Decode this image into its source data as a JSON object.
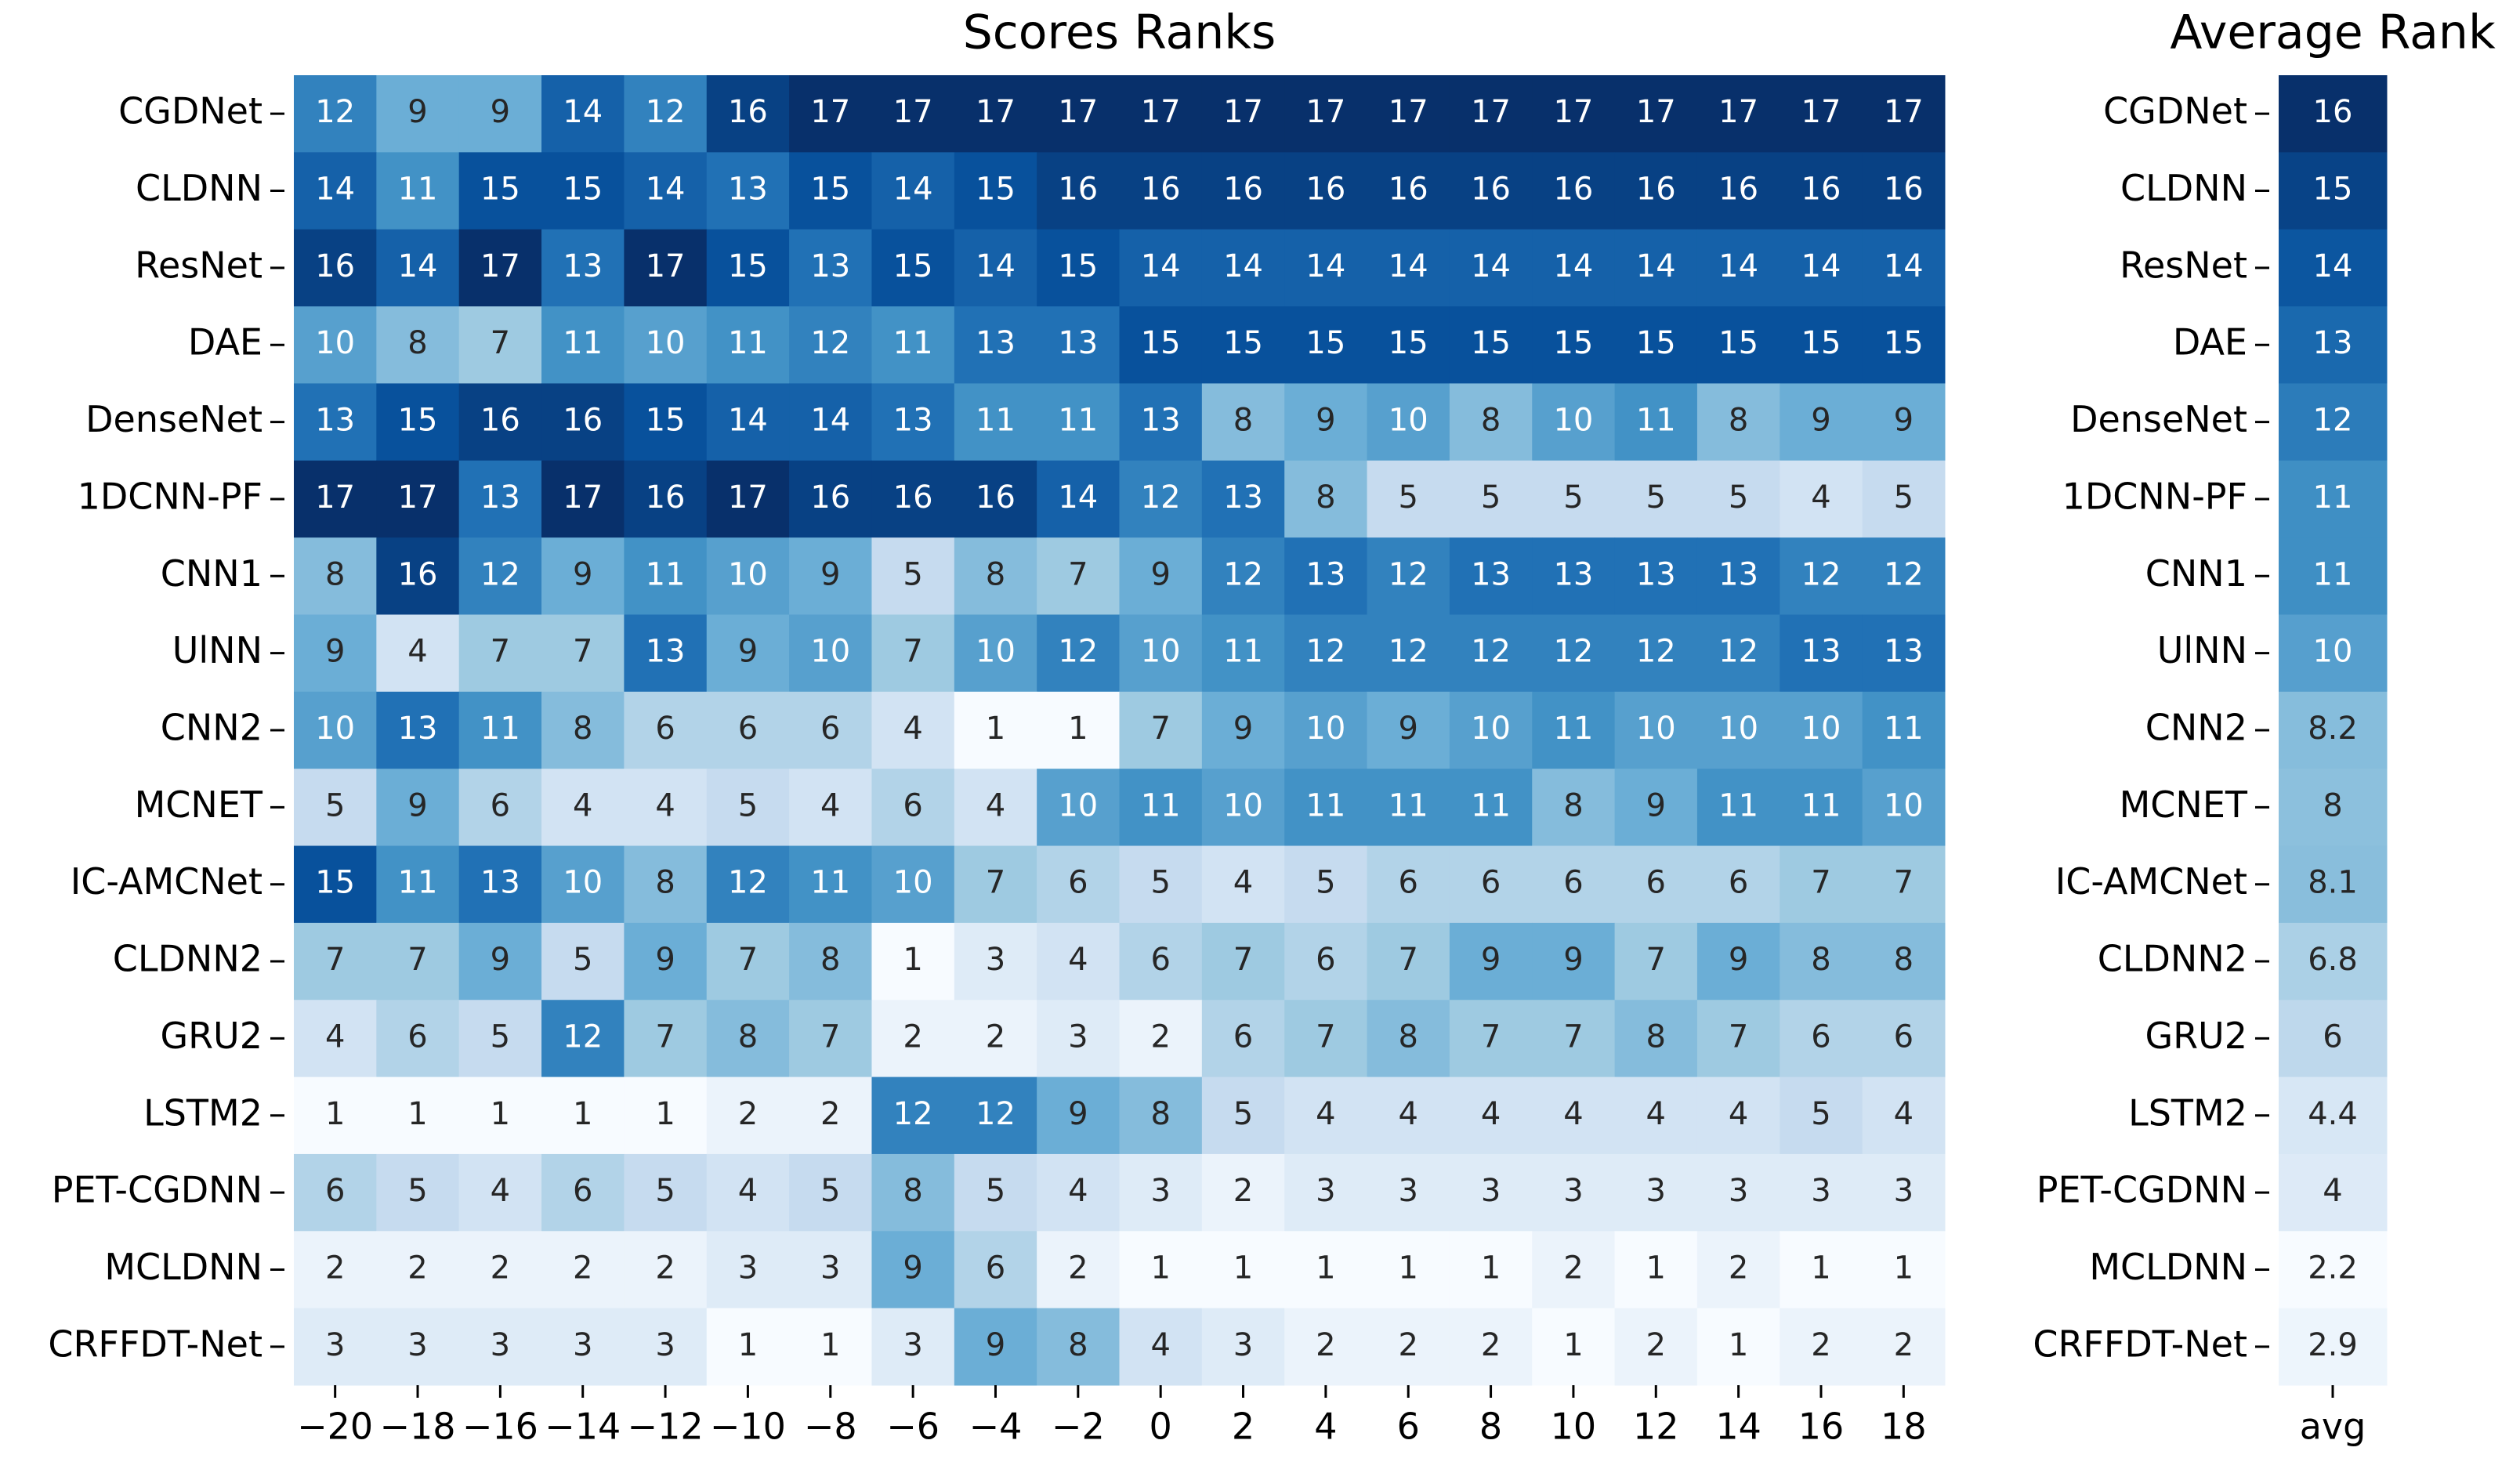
{
  "chart_data": [
    {
      "type": "heatmap",
      "title": "Scores Ranks",
      "rows": [
        "CGDNet",
        "CLDNN",
        "ResNet",
        "DAE",
        "DenseNet",
        "1DCNN-PF",
        "CNN1",
        "UlNN",
        "CNN2",
        "MCNET",
        "IC-AMCNet",
        "CLDNN2",
        "GRU2",
        "LSTM2",
        "PET-CGDNN",
        "MCLDNN",
        "CRFFDT-Net"
      ],
      "xticks": [
        {
          "value": -20,
          "label": "−20"
        },
        {
          "value": -18,
          "label": "−18"
        },
        {
          "value": -16,
          "label": "−16"
        },
        {
          "value": -14,
          "label": "−14"
        },
        {
          "value": -12,
          "label": "−12"
        },
        {
          "value": -10,
          "label": "−10"
        },
        {
          "value": -8,
          "label": "−8"
        },
        {
          "value": -6,
          "label": "−6"
        },
        {
          "value": -4,
          "label": "−4"
        },
        {
          "value": -2,
          "label": "−2"
        },
        0,
        2,
        4,
        6,
        8,
        10,
        12,
        14,
        16,
        18
      ],
      "values": [
        [
          12,
          9,
          9,
          14,
          12,
          16,
          17,
          17,
          17,
          17,
          17,
          17,
          17,
          17,
          17,
          17,
          17,
          17,
          17,
          17
        ],
        [
          14,
          11,
          15,
          15,
          14,
          13,
          15,
          14,
          15,
          16,
          16,
          16,
          16,
          16,
          16,
          16,
          16,
          16,
          16,
          16
        ],
        [
          16,
          14,
          17,
          13,
          17,
          15,
          13,
          15,
          14,
          15,
          14,
          14,
          14,
          14,
          14,
          14,
          14,
          14,
          14,
          14
        ],
        [
          10,
          8,
          7,
          11,
          10,
          11,
          12,
          11,
          13,
          13,
          15,
          15,
          15,
          15,
          15,
          15,
          15,
          15,
          15,
          15
        ],
        [
          13,
          15,
          16,
          16,
          15,
          14,
          14,
          13,
          11,
          11,
          13,
          8,
          9,
          10,
          8,
          10,
          11,
          8,
          9,
          9
        ],
        [
          17,
          17,
          13,
          17,
          16,
          17,
          16,
          16,
          16,
          14,
          12,
          13,
          8,
          5,
          5,
          5,
          5,
          5,
          4,
          5
        ],
        [
          8,
          16,
          12,
          9,
          11,
          10,
          9,
          5,
          8,
          7,
          9,
          12,
          13,
          12,
          13,
          13,
          13,
          13,
          12,
          12
        ],
        [
          9,
          4,
          7,
          7,
          13,
          9,
          10,
          7,
          10,
          12,
          10,
          11,
          12,
          12,
          12,
          12,
          12,
          12,
          13,
          13
        ],
        [
          10,
          13,
          11,
          8,
          6,
          6,
          6,
          4,
          1,
          1,
          7,
          9,
          10,
          9,
          10,
          11,
          10,
          10,
          10,
          11
        ],
        [
          5,
          9,
          6,
          4,
          4,
          5,
          4,
          6,
          4,
          10,
          11,
          10,
          11,
          11,
          11,
          8,
          9,
          11,
          11,
          10
        ],
        [
          15,
          11,
          13,
          10,
          8,
          12,
          11,
          10,
          7,
          6,
          5,
          4,
          5,
          6,
          6,
          6,
          6,
          6,
          7,
          7
        ],
        [
          7,
          7,
          9,
          5,
          9,
          7,
          8,
          1,
          3,
          4,
          6,
          7,
          6,
          7,
          9,
          9,
          7,
          9,
          8,
          8
        ],
        [
          4,
          6,
          5,
          12,
          7,
          8,
          7,
          2,
          2,
          3,
          2,
          6,
          7,
          8,
          7,
          7,
          8,
          7,
          6,
          6
        ],
        [
          1,
          1,
          1,
          1,
          1,
          2,
          2,
          12,
          12,
          9,
          8,
          5,
          4,
          4,
          4,
          4,
          4,
          4,
          5,
          4
        ],
        [
          6,
          5,
          4,
          6,
          5,
          4,
          5,
          8,
          5,
          4,
          3,
          2,
          3,
          3,
          3,
          3,
          3,
          3,
          3,
          3
        ],
        [
          2,
          2,
          2,
          2,
          2,
          3,
          3,
          9,
          6,
          2,
          1,
          1,
          1,
          1,
          1,
          2,
          1,
          2,
          1,
          1
        ],
        [
          3,
          3,
          3,
          3,
          3,
          1,
          1,
          3,
          9,
          8,
          4,
          3,
          2,
          2,
          2,
          1,
          2,
          1,
          2,
          2
        ]
      ],
      "vlim": [
        1,
        17
      ],
      "colorscale": [
        "#f7fbff",
        "#deebf7",
        "#c6dbef",
        "#9ecae1",
        "#6baed6",
        "#4292c6",
        "#2171b5",
        "#08519c",
        "#08306b"
      ]
    },
    {
      "type": "heatmap",
      "title": "Average Rank",
      "rows": [
        "CGDNet",
        "CLDNN",
        "ResNet",
        "DAE",
        "DenseNet",
        "1DCNN-PF",
        "CNN1",
        "UlNN",
        "CNN2",
        "MCNET",
        "IC-AMCNet",
        "CLDNN2",
        "GRU2",
        "LSTM2",
        "PET-CGDNN",
        "MCLDNN",
        "CRFFDT-Net"
      ],
      "xticks": [
        "avg"
      ],
      "values": [
        [
          16
        ],
        [
          15
        ],
        [
          14
        ],
        [
          13
        ],
        [
          12
        ],
        [
          11
        ],
        [
          11
        ],
        [
          10
        ],
        [
          8.2
        ],
        [
          8
        ],
        [
          8.1
        ],
        [
          6.8
        ],
        [
          6
        ],
        [
          4.4
        ],
        [
          4
        ],
        [
          2.2
        ],
        [
          2.9
        ]
      ],
      "vlim": [
        2.2,
        16
      ],
      "colorscale": [
        "#f7fbff",
        "#deebf7",
        "#c6dbef",
        "#9ecae1",
        "#6baed6",
        "#4292c6",
        "#2171b5",
        "#08519c",
        "#08306b"
      ]
    }
  ]
}
